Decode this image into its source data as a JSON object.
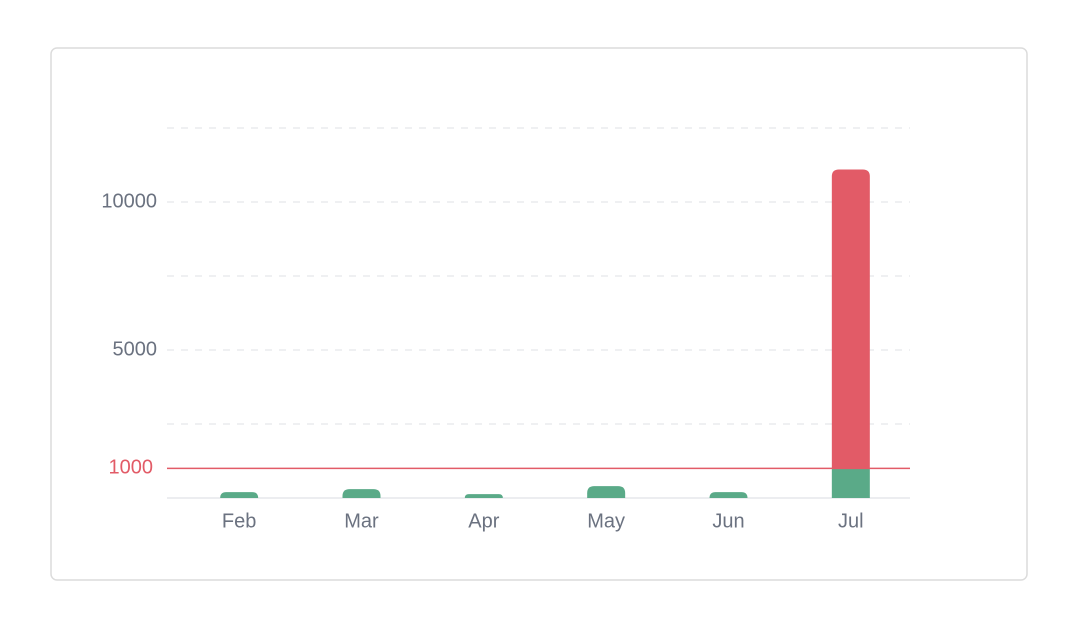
{
  "chart_data": {
    "type": "bar",
    "categories": [
      "Feb",
      "Mar",
      "Apr",
      "May",
      "Jun",
      "Jul"
    ],
    "series": [
      {
        "color": "#5aaa88",
        "values": [
          200,
          300,
          130,
          400,
          200,
          1000
        ]
      },
      {
        "color": "#e25b67",
        "values": [
          0,
          0,
          0,
          0,
          0,
          10100
        ]
      }
    ],
    "stacked": true,
    "ylim": [
      0,
      12500
    ],
    "yticks": [
      5000,
      10000
    ],
    "grid_lines": [
      2500,
      5000,
      7500,
      10000,
      12500
    ],
    "threshold": {
      "value": 1000,
      "color": "#e25b67"
    }
  }
}
